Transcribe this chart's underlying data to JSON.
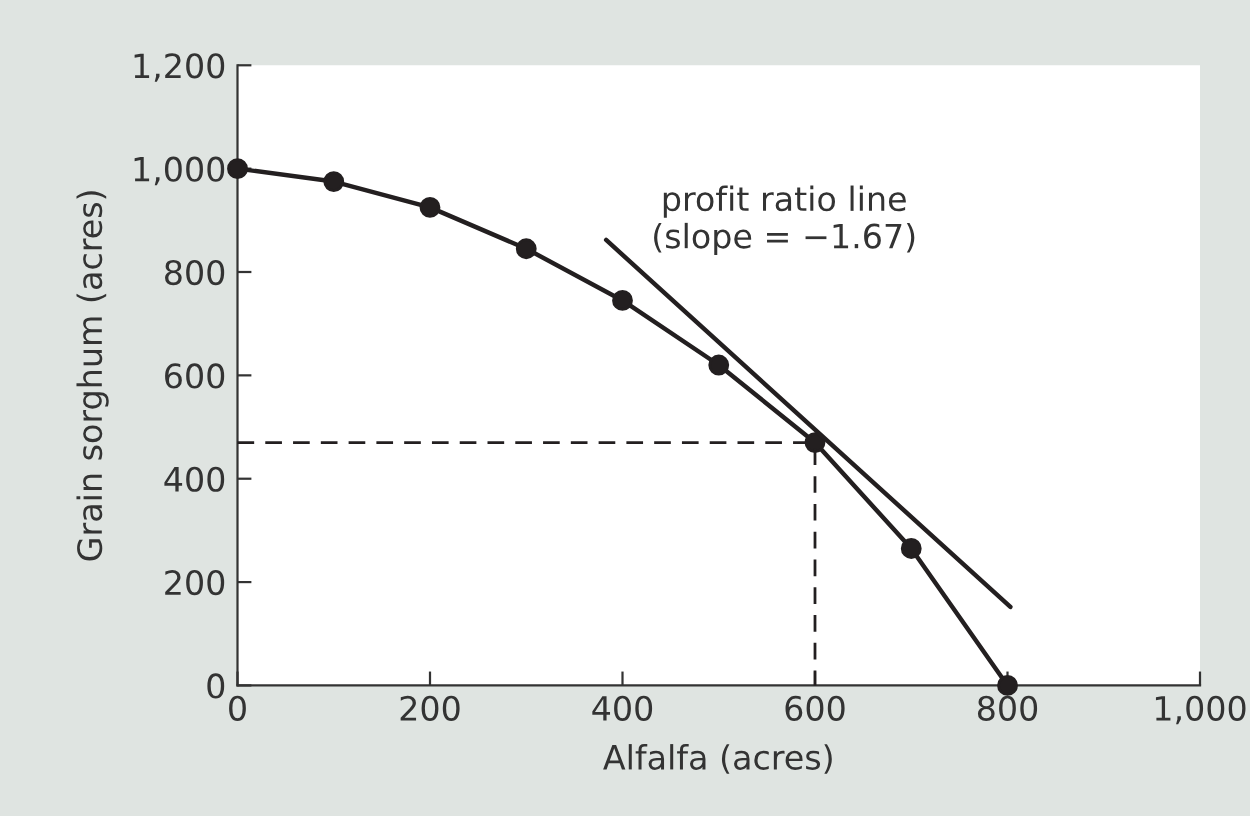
{
  "chart_data": {
    "type": "line",
    "xlabel": "Alfalfa (acres)",
    "ylabel": "Grain sorghum (acres)",
    "xlim": [
      0,
      1000
    ],
    "ylim": [
      0,
      1200
    ],
    "xticks": [
      0,
      200,
      400,
      600,
      800,
      {
        "value": 1000,
        "label": "1,000"
      }
    ],
    "yticks": [
      0,
      200,
      400,
      600,
      800,
      {
        "value": 1000,
        "label": "1,000"
      },
      {
        "value": 1200,
        "label": "1,200"
      }
    ],
    "grid": false,
    "legend": false,
    "series": [
      {
        "color": "#231f20",
        "marker": "circle",
        "line_style": "solid",
        "x": [
          0,
          100,
          200,
          300,
          400,
          500,
          600,
          700,
          800
        ],
        "values": [
          1000,
          975,
          925,
          845,
          745,
          620,
          470,
          265,
          0
        ]
      },
      {
        "color": "#231f20",
        "marker": "none",
        "line_style": "solid",
        "x": [
          383,
          803
        ],
        "values": [
          862,
          152
        ]
      },
      {
        "color": "#231f20",
        "marker": "none",
        "line_style": "dashed",
        "x": [
          0,
          600,
          600
        ],
        "values": [
          470,
          470,
          0
        ]
      }
    ],
    "annotations": [
      "profit ratio line\n(slope = −1.67)"
    ]
  }
}
